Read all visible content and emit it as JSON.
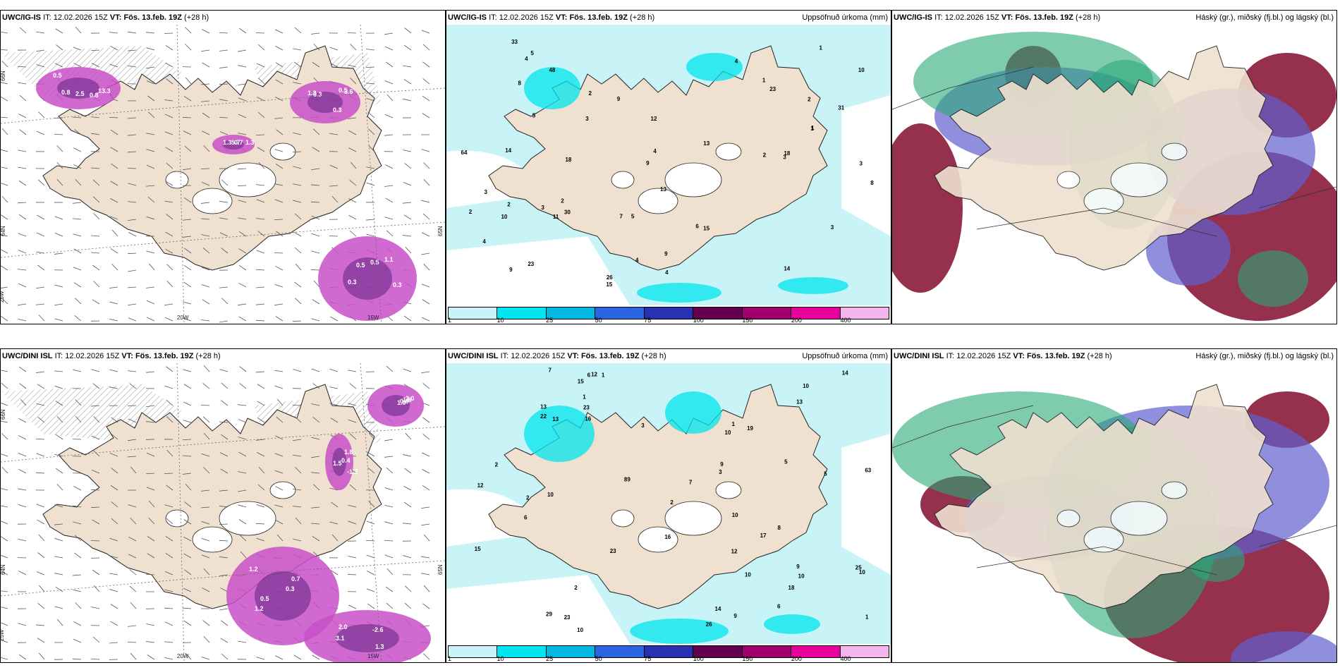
{
  "panels": [
    {
      "id": "p1",
      "model": "UWC/IG-IS",
      "it_label": "IT:",
      "it": "12.02.2026 15Z",
      "vt_label": "VT:",
      "vt": "Fös. 13.feb. 19Z",
      "lead": "(+28 h)",
      "right_title": "",
      "kind": "wind",
      "axis_labels": [
        "20W",
        "15W",
        "25W",
        "66N",
        "65N",
        "64N"
      ],
      "values": [
        "0.5",
        "0.3",
        "0.5",
        "1.3",
        "0.8",
        "1.3",
        "0.3",
        "0.7",
        "2.5",
        "3.6",
        "0.5",
        "1.3",
        "0.8",
        "0.5",
        "0.3",
        "5.7",
        "13.3",
        "0.3",
        "1.1"
      ]
    },
    {
      "id": "p2",
      "model": "UWC/IG-IS",
      "it_label": "IT:",
      "it": "12.02.2026 15Z",
      "vt_label": "VT:",
      "vt": "Fös. 13.feb. 19Z",
      "lead": "(+28 h)",
      "right_title": "Uppsöfnuð úrkoma (mm)",
      "kind": "precip",
      "legend": [
        "1",
        "10",
        "25",
        "50",
        "75",
        "100",
        "150",
        "200",
        "400"
      ],
      "legend_colors": [
        "#c8f4f8",
        "#00e5ee",
        "#00b8e0",
        "#2a64e0",
        "#2832b0",
        "#640050",
        "#a0006e",
        "#e6009c",
        "#f4b4ec"
      ],
      "values": [
        "2",
        "14",
        "18",
        "13",
        "9",
        "9",
        "9",
        "3",
        "5",
        "3",
        "11",
        "48",
        "26",
        "31",
        "9",
        "10",
        "15",
        "12",
        "14",
        "13",
        "6",
        "8",
        "2",
        "3",
        "7",
        "3",
        "4",
        "5",
        "1",
        "2",
        "1",
        "4",
        "15",
        "1",
        "2",
        "3",
        "4",
        "3",
        "2",
        "4",
        "4",
        "1",
        "8",
        "18",
        "10",
        "4",
        "5",
        "33",
        "64",
        "23",
        "30",
        "23",
        "2"
      ]
    },
    {
      "id": "p3",
      "model": "UWC/IG-IS",
      "it_label": "IT:",
      "it": "12.02.2026 15Z",
      "vt_label": "VT:",
      "vt": "Fös. 13.feb. 19Z",
      "lead": "(+28 h)",
      "right_title": "Háský (gr.), miðský (fj.bl.) og lágský (bl.)",
      "kind": "cloud"
    },
    {
      "id": "p4",
      "model": "UWC/DINI ISL",
      "it_label": "IT:",
      "it": "12.02.2026 15Z",
      "vt_label": "VT:",
      "vt": "Fös. 13.feb. 19Z",
      "lead": "(+28 h)",
      "right_title": "",
      "kind": "wind",
      "axis_labels": [
        "20W",
        "15W",
        "25W",
        "66N",
        "65N",
        "64N"
      ],
      "values": [
        "1.2",
        "2.0",
        "1.0",
        "0.4",
        "0.3",
        "1.3",
        "0.6",
        "1.8",
        "1.2",
        "3.1",
        "1.8",
        "-1.2",
        "0.7",
        "-2.6",
        "3.0",
        "1.5",
        "0.5"
      ]
    },
    {
      "id": "p5",
      "model": "UWC/DINI ISL",
      "it_label": "IT:",
      "it": "12.02.2026 15Z",
      "vt_label": "VT:",
      "vt": "Fös. 13.feb. 19Z",
      "lead": "(+28 h)",
      "right_title": "Uppsöfnuð úrkoma (mm)",
      "kind": "precip",
      "legend": [
        "1",
        "10",
        "25",
        "50",
        "75",
        "100",
        "150",
        "200",
        "400"
      ],
      "legend_colors": [
        "#c8f4f8",
        "#00e5ee",
        "#00b8e0",
        "#2a64e0",
        "#2832b0",
        "#640050",
        "#a0006e",
        "#e6009c",
        "#f4b4ec"
      ],
      "values": [
        "3",
        "6",
        "5",
        "10",
        "22",
        "12",
        "10",
        "10",
        "9",
        "6",
        "23",
        "15",
        "12",
        "8",
        "7",
        "9",
        "10",
        "16",
        "18",
        "5",
        "29",
        "12",
        "23",
        "19",
        "17",
        "15",
        "2",
        "1",
        "6",
        "1",
        "2",
        "1",
        "2",
        "7",
        "9",
        "1",
        "13",
        "10",
        "16",
        "14",
        "63",
        "89",
        "23",
        "25",
        "26",
        "13",
        "14",
        "13",
        "10",
        "10",
        "3",
        "10",
        "2"
      ]
    },
    {
      "id": "p6",
      "model": "UWC/DINI ISL",
      "it_label": "IT:",
      "it": "12.02.2026 15Z",
      "vt_label": "VT:",
      "vt": "Fös. 13.feb. 19Z",
      "lead": "(+28 h)",
      "right_title": "Háský (gr.), miðský (fj.bl.) og lágský (bl.)",
      "kind": "cloud"
    }
  ],
  "colors": {
    "land": "#efe0cf",
    "sea": "#ffffff",
    "precip_light": "#c8f4f8",
    "precip_mid": "#00e5ee",
    "wind_magenta": "#c850c8",
    "wind_dark": "#6a2a8a",
    "cloud_high": "#2aa878",
    "cloud_mid": "#6060d0",
    "cloud_low": "#8a1a3a"
  }
}
